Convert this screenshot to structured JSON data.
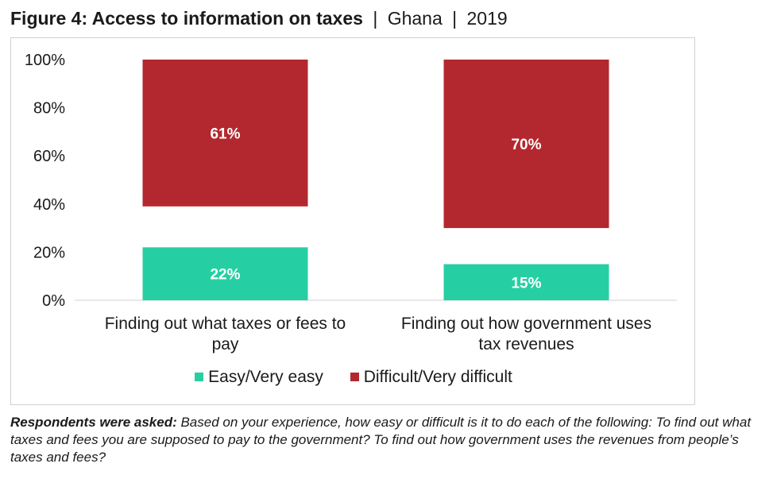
{
  "title": {
    "bold": "Figure 4: Access to information on taxes",
    "country": "Ghana",
    "year": "2019",
    "separator": "|"
  },
  "colors": {
    "easy": "#26cfa3",
    "difficult": "#b3282e"
  },
  "chart_data": {
    "type": "bar",
    "categories": [
      [
        "Finding out what taxes or fees to",
        "pay"
      ],
      [
        "Finding out how government uses",
        "tax revenues"
      ]
    ],
    "series": [
      {
        "name": "Easy/Very easy",
        "values": [
          22,
          15
        ],
        "labels": [
          "22%",
          "15%"
        ]
      },
      {
        "name": "Difficult/Very difficult",
        "values": [
          61,
          70
        ],
        "labels": [
          "61%",
          "70%"
        ]
      }
    ],
    "yticks": [
      "0%",
      "20%",
      "40%",
      "60%",
      "80%",
      "100%"
    ],
    "ylim": [
      0,
      100
    ],
    "grid": false,
    "legend_position": "bottom"
  },
  "note": {
    "lead": "Respondents were asked:",
    "text": " Based on your experience, how easy or difficult is it to do each of the following: To find out what taxes and fees you are supposed to pay to the government? To find out how government uses the revenues from people’s taxes and fees?"
  }
}
